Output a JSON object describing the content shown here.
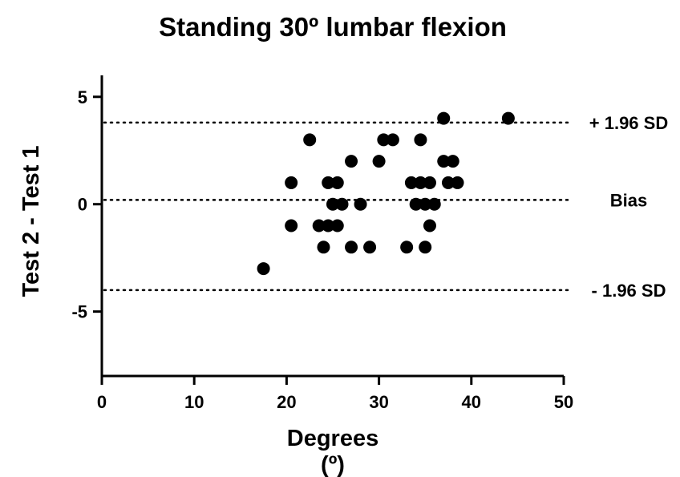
{
  "chart_data": {
    "type": "scatter",
    "title": "Standing 30º lumbar flexion",
    "xlabel_line1": "Degrees",
    "xlabel_line2": "(º)",
    "ylabel": "Test 2 - Test 1",
    "xlim": [
      0,
      50
    ],
    "ylim": [
      -8,
      6
    ],
    "x_ticks": [
      0,
      10,
      20,
      30,
      40,
      50
    ],
    "x_tick_labels": [
      "0",
      "10",
      "20",
      "30",
      "40",
      "50"
    ],
    "y_ticks": [
      5,
      0,
      -5
    ],
    "y_tick_labels": [
      "5",
      "0",
      "-5"
    ],
    "grid": false,
    "reference_lines": [
      {
        "label": "+ 1.96 SD",
        "y": 3.8
      },
      {
        "label": "Bias",
        "y": 0.2
      },
      {
        "label": "- 1.96 SD",
        "y": -4.0
      }
    ],
    "points": [
      {
        "x": 17.5,
        "y": -3
      },
      {
        "x": 20.5,
        "y": 1
      },
      {
        "x": 20.5,
        "y": -1
      },
      {
        "x": 22.5,
        "y": 3
      },
      {
        "x": 23.5,
        "y": -1
      },
      {
        "x": 24.0,
        "y": -2
      },
      {
        "x": 24.5,
        "y": 1
      },
      {
        "x": 24.5,
        "y": -1
      },
      {
        "x": 25.0,
        "y": 0
      },
      {
        "x": 25.5,
        "y": 1
      },
      {
        "x": 25.5,
        "y": -1
      },
      {
        "x": 26.0,
        "y": 0
      },
      {
        "x": 27.0,
        "y": 2
      },
      {
        "x": 27.0,
        "y": -2
      },
      {
        "x": 28.0,
        "y": 0
      },
      {
        "x": 29.0,
        "y": -2
      },
      {
        "x": 30.0,
        "y": 2
      },
      {
        "x": 30.5,
        "y": 3
      },
      {
        "x": 31.5,
        "y": 3
      },
      {
        "x": 33.0,
        "y": -2
      },
      {
        "x": 33.5,
        "y": 1
      },
      {
        "x": 34.0,
        "y": 0
      },
      {
        "x": 34.5,
        "y": 3
      },
      {
        "x": 34.5,
        "y": 1
      },
      {
        "x": 35.0,
        "y": 0
      },
      {
        "x": 35.0,
        "y": -2
      },
      {
        "x": 35.5,
        "y": 1
      },
      {
        "x": 35.5,
        "y": -1
      },
      {
        "x": 36.0,
        "y": 0
      },
      {
        "x": 37.0,
        "y": 4
      },
      {
        "x": 37.0,
        "y": 2
      },
      {
        "x": 37.5,
        "y": 1
      },
      {
        "x": 38.0,
        "y": 2
      },
      {
        "x": 38.5,
        "y": 1
      },
      {
        "x": 44.0,
        "y": 4
      }
    ],
    "marker_color": "#000000"
  }
}
